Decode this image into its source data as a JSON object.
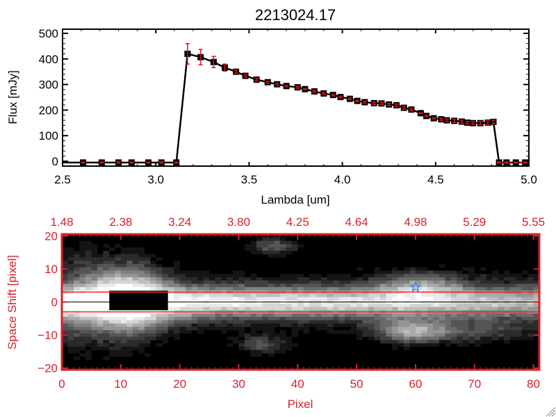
{
  "chart_data": [
    {
      "type": "line",
      "title": "2213024.17",
      "xlabel": "Lambda [um]",
      "ylabel": "Flux [mJy]",
      "xlim": [
        2.5,
        5.0
      ],
      "ylim": [
        -20,
        520
      ],
      "xticks": [
        "2.5",
        "3.0",
        "3.5",
        "4.0",
        "4.5",
        "5.0"
      ],
      "yticks": [
        "0",
        "100",
        "200",
        "300",
        "400",
        "500"
      ],
      "colors": {
        "line": "#000000",
        "marker": "#000000",
        "errorbar": "#e01010"
      },
      "x": [
        2.61,
        2.71,
        2.8,
        2.87,
        2.96,
        3.03,
        3.11,
        3.17,
        3.24,
        3.31,
        3.37,
        3.43,
        3.48,
        3.54,
        3.6,
        3.65,
        3.7,
        3.76,
        3.8,
        3.85,
        3.9,
        3.95,
        3.99,
        4.04,
        4.08,
        4.12,
        4.17,
        4.21,
        4.25,
        4.29,
        4.33,
        4.37,
        4.42,
        4.45,
        4.49,
        4.53,
        4.56,
        4.6,
        4.64,
        4.67,
        4.7,
        4.74,
        4.78,
        4.81,
        4.84,
        4.88,
        4.93,
        4.98
      ],
      "y": [
        0,
        0,
        0,
        0,
        0,
        0,
        0,
        420,
        407,
        388,
        366,
        350,
        334,
        319,
        309,
        301,
        294,
        289,
        282,
        273,
        265,
        259,
        251,
        244,
        236,
        231,
        227,
        226,
        222,
        219,
        209,
        202,
        188,
        177,
        168,
        164,
        160,
        158,
        155,
        151,
        149,
        149,
        151,
        154,
        0,
        0,
        0,
        0
      ],
      "yerr": [
        2,
        2,
        2,
        2,
        2,
        2,
        2,
        40,
        30,
        22,
        14,
        6,
        5,
        5,
        4,
        4,
        3,
        3,
        2,
        3,
        3,
        3,
        3,
        3,
        3,
        4,
        5,
        4,
        4,
        5,
        5,
        4,
        2,
        3,
        3,
        4,
        5,
        6,
        6,
        5,
        5,
        6,
        7,
        7,
        2,
        2,
        2,
        2
      ]
    },
    {
      "type": "heatmap",
      "xlabel": "Pixel",
      "ylabel": "Space Shift [pixel]",
      "xlim": [
        0,
        81
      ],
      "ylim": [
        -20.5,
        20.5
      ],
      "xticks": [
        "0",
        "10",
        "20",
        "30",
        "40",
        "50",
        "60",
        "70",
        "80"
      ],
      "yticks": [
        "20",
        "10",
        "0",
        "-10",
        "-20"
      ],
      "top_xticks": [
        "1.48",
        "2.38",
        "3.24",
        "3.80",
        "4.25",
        "4.64",
        "4.98",
        "5.29",
        "5.55"
      ],
      "colormap": "grayscale",
      "extraction_lines": [
        3,
        -3
      ],
      "center_line": 0,
      "star_marker": {
        "pixel": 60,
        "shift": 4.5,
        "color": "#3a8ef0"
      },
      "colors": {
        "axes": "#d8202a",
        "extraction_lines": "#ff2020",
        "center_line": "#000000"
      }
    }
  ]
}
